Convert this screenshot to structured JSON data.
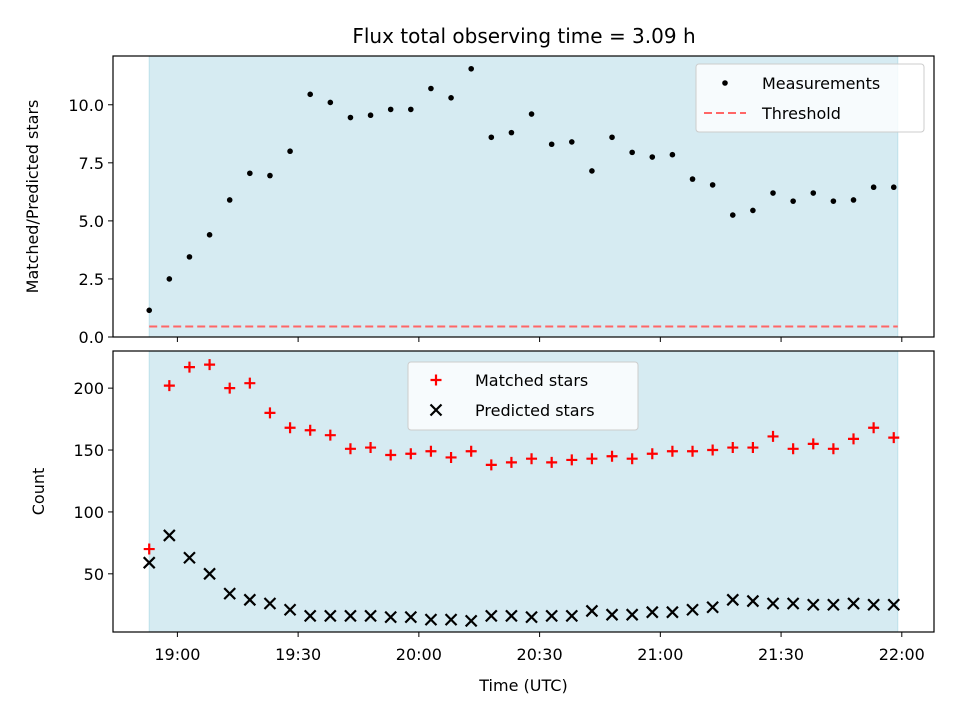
{
  "title": "Flux total observing time = 3.09 h",
  "colors": {
    "span": "#add8e6",
    "measurements": "#000000",
    "threshold": "#ff6666",
    "matched": "#ff0000",
    "predicted": "#000000"
  },
  "chart_data": [
    {
      "type": "scatter",
      "panel": "top",
      "title": "Flux total observing time = 3.09 h",
      "xlabel": "",
      "ylabel": "Matched/Predicted stars",
      "ylim": [
        0,
        12.1
      ],
      "yticks": [
        0.0,
        2.5,
        5.0,
        7.5,
        10.0
      ],
      "ytick_labels": [
        "0.0",
        "2.5",
        "5.0",
        "7.5",
        "10.0"
      ],
      "xlim": [
        "18:44",
        "22:08"
      ],
      "span": [
        "18:53",
        "21:59"
      ],
      "legend_placement": "top-right",
      "series": [
        {
          "name": "Measurements",
          "marker": "dot",
          "x": [
            "18:53",
            "18:58",
            "19:03",
            "19:08",
            "19:13",
            "19:18",
            "19:23",
            "19:28",
            "19:33",
            "19:38",
            "19:43",
            "19:48",
            "19:53",
            "19:58",
            "20:03",
            "20:08",
            "20:13",
            "20:18",
            "20:23",
            "20:28",
            "20:33",
            "20:38",
            "20:43",
            "20:48",
            "20:53",
            "20:58",
            "21:03",
            "21:08",
            "21:13",
            "21:18",
            "21:23",
            "21:28",
            "21:33",
            "21:38",
            "21:43",
            "21:48",
            "21:53",
            "21:58"
          ],
          "y": [
            1.15,
            2.5,
            3.45,
            4.4,
            5.9,
            7.05,
            6.95,
            8.0,
            10.45,
            10.1,
            9.45,
            9.55,
            9.8,
            9.8,
            10.7,
            10.3,
            11.55,
            8.6,
            8.8,
            9.6,
            8.3,
            8.4,
            7.15,
            8.6,
            7.95,
            7.75,
            7.85,
            6.8,
            6.55,
            5.25,
            5.45,
            6.2,
            5.85,
            6.2,
            5.85,
            5.9,
            6.45,
            6.45
          ]
        },
        {
          "name": "Threshold",
          "marker": "dashed-line",
          "x": [
            "18:53",
            "21:59"
          ],
          "y": [
            0.45,
            0.45
          ]
        }
      ]
    },
    {
      "type": "scatter",
      "panel": "bottom",
      "xlabel": "Time (UTC)",
      "ylabel": "Count",
      "ylim": [
        3,
        230
      ],
      "yticks": [
        50,
        100,
        150,
        200
      ],
      "ytick_labels": [
        "50",
        "100",
        "150",
        "200"
      ],
      "xlim": [
        "18:44",
        "22:08"
      ],
      "xticks": [
        "19:00",
        "19:30",
        "20:00",
        "20:30",
        "21:00",
        "21:30",
        "22:00"
      ],
      "xtick_labels": [
        "19:00",
        "19:30",
        "20:00",
        "20:30",
        "21:00",
        "21:30",
        "22:00"
      ],
      "span": [
        "18:53",
        "21:59"
      ],
      "legend_placement": "top-center",
      "x": [
        "18:53",
        "18:58",
        "19:03",
        "19:08",
        "19:13",
        "19:18",
        "19:23",
        "19:28",
        "19:33",
        "19:38",
        "19:43",
        "19:48",
        "19:53",
        "19:58",
        "20:03",
        "20:08",
        "20:13",
        "20:18",
        "20:23",
        "20:28",
        "20:33",
        "20:38",
        "20:43",
        "20:48",
        "20:53",
        "20:58",
        "21:03",
        "21:08",
        "21:13",
        "21:18",
        "21:23",
        "21:28",
        "21:33",
        "21:38",
        "21:43",
        "21:48",
        "21:53",
        "21:58"
      ],
      "series": [
        {
          "name": "Matched stars",
          "marker": "plus",
          "values": [
            70,
            202,
            217,
            219,
            200,
            204,
            180,
            168,
            166,
            162,
            151,
            152,
            146,
            147,
            149,
            144,
            149,
            138,
            140,
            143,
            140,
            142,
            143,
            145,
            143,
            147,
            149,
            149,
            150,
            152,
            152,
            161,
            151,
            155,
            151,
            159,
            168,
            160
          ]
        },
        {
          "name": "Predicted stars",
          "marker": "x",
          "values": [
            59,
            81,
            63,
            50,
            34,
            29,
            26,
            21,
            16,
            16,
            16,
            16,
            15,
            15,
            13,
            13,
            12,
            16,
            16,
            15,
            16,
            16,
            20,
            17,
            17,
            19,
            19,
            21,
            23,
            29,
            28,
            26,
            26,
            25,
            25,
            26,
            25,
            25
          ]
        }
      ]
    }
  ]
}
